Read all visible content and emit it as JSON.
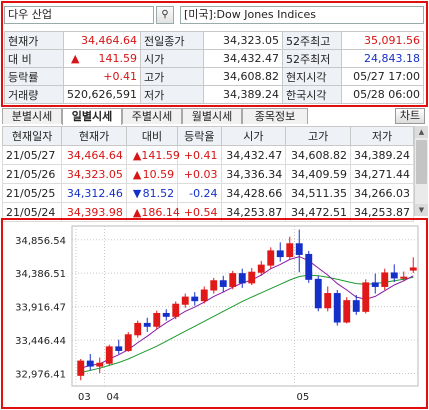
{
  "search": {
    "value": "다우 산업",
    "icon": "search-icon",
    "name": "[미국]:Dow Jones Indices"
  },
  "quote": {
    "current_label": "현재가",
    "current": "34,464.64",
    "prev_close_label": "전일종가",
    "prev_close": "34,323.05",
    "w52_high_label": "52주최고",
    "w52_high": "35,091.56",
    "change_label": "대 비",
    "change_sign": "▲",
    "change": "141.59",
    "open_label": "시가",
    "open": "34,432.47",
    "w52_low_label": "52주최저",
    "w52_low": "24,843.18",
    "rate_label": "등락률",
    "rate": "+0.41",
    "high_label": "고가",
    "high": "34,608.82",
    "local_time_label": "현지시각",
    "local_time": "05/27 17:00",
    "volume_label": "거래량",
    "volume": "520,626,591",
    "low_label": "저가",
    "low": "34,389.24",
    "kr_time_label": "한국시각",
    "kr_time": "05/28 06:00"
  },
  "tabs": [
    "분별시세",
    "일별시세",
    "주별시세",
    "월별시세",
    "종목정보"
  ],
  "chart_button": "차트",
  "daily": {
    "headers": [
      "현재일자",
      "현재가",
      "대비",
      "등락율",
      "시가",
      "고가",
      "저가"
    ],
    "rows": [
      {
        "date": "21/05/27",
        "close": "34,464.64",
        "sign": "▲",
        "diff": "141.59",
        "rate": "+0.41",
        "open": "34,432.47",
        "high": "34,608.82",
        "low": "34,389.24",
        "dir": "up"
      },
      {
        "date": "21/05/26",
        "close": "34,323.05",
        "sign": "▲",
        "diff": "10.59",
        "rate": "+0.03",
        "open": "34,336.34",
        "high": "34,409.59",
        "low": "34,271.44",
        "dir": "up"
      },
      {
        "date": "21/05/25",
        "close": "34,312.46",
        "sign": "▼",
        "diff": "81.52",
        "rate": "-0.24",
        "open": "34,428.66",
        "high": "34,511.35",
        "low": "34,266.03",
        "dir": "dn"
      },
      {
        "date": "21/05/24",
        "close": "34,393.98",
        "sign": "▲",
        "diff": "186.14",
        "rate": "+0.54",
        "open": "34,253.87",
        "high": "34,472.51",
        "low": "34,253.87",
        "dir": "up"
      }
    ]
  },
  "chart_data": {
    "type": "candlestick",
    "y_ticks": [
      "34,856.54",
      "34,386.51",
      "33,916.47",
      "33,446.44",
      "32,976.41"
    ],
    "y_tick_values": [
      34856.54,
      34386.51,
      33916.47,
      33446.44,
      32976.41
    ],
    "ylim": [
      32800,
      35050
    ],
    "x_ticks": [
      {
        "label": "03",
        "index": 0
      },
      {
        "label": "04",
        "index": 3
      },
      {
        "label": "05",
        "index": 23
      }
    ],
    "colors": {
      "up": "#e01818",
      "down": "#1530c8",
      "ma_short": "#8a1aa8",
      "ma_long": "#1a9a2a"
    },
    "candles": [
      [
        32950,
        33150,
        32880,
        33180
      ],
      [
        33150,
        33080,
        33020,
        33250
      ],
      [
        33080,
        33120,
        32980,
        33200
      ],
      [
        33120,
        33350,
        33090,
        33380
      ],
      [
        33350,
        33300,
        33250,
        33450
      ],
      [
        33300,
        33520,
        33280,
        33560
      ],
      [
        33520,
        33680,
        33480,
        33720
      ],
      [
        33680,
        33640,
        33560,
        33760
      ],
      [
        33640,
        33820,
        33600,
        33860
      ],
      [
        33820,
        33780,
        33720,
        33880
      ],
      [
        33780,
        33950,
        33740,
        33990
      ],
      [
        33950,
        34050,
        33900,
        34100
      ],
      [
        34050,
        34000,
        33930,
        34120
      ],
      [
        34000,
        34150,
        33960,
        34200
      ],
      [
        34150,
        34280,
        34100,
        34320
      ],
      [
        34280,
        34200,
        34120,
        34350
      ],
      [
        34200,
        34380,
        34160,
        34420
      ],
      [
        34380,
        34250,
        34180,
        34450
      ],
      [
        34250,
        34400,
        34220,
        34460
      ],
      [
        34400,
        34500,
        34350,
        34560
      ],
      [
        34500,
        34700,
        34450,
        34750
      ],
      [
        34700,
        34620,
        34550,
        34820
      ],
      [
        34620,
        34800,
        34580,
        34900
      ],
      [
        34800,
        34650,
        34400,
        35000
      ],
      [
        34650,
        34300,
        34250,
        34700
      ],
      [
        34300,
        33900,
        33850,
        34350
      ],
      [
        33900,
        34100,
        33850,
        34200
      ],
      [
        34100,
        33700,
        33650,
        34150
      ],
      [
        33700,
        34000,
        33680,
        34050
      ],
      [
        34000,
        33850,
        33800,
        34080
      ],
      [
        33850,
        34250,
        33820,
        34300
      ],
      [
        34250,
        34200,
        34100,
        34380
      ],
      [
        34200,
        34390,
        34150,
        34450
      ],
      [
        34390,
        34320,
        34260,
        34510
      ],
      [
        34320,
        34330,
        34270,
        34410
      ],
      [
        34430,
        34460,
        34390,
        34610
      ]
    ],
    "ma_short": [
      33050,
      33090,
      33110,
      33180,
      33240,
      33310,
      33410,
      33500,
      33600,
      33690,
      33770,
      33850,
      33910,
      33980,
      34060,
      34120,
      34190,
      34250,
      34290,
      34360,
      34450,
      34510,
      34580,
      34620,
      34560,
      34460,
      34360,
      34240,
      34150,
      34050,
      34020,
      34060,
      34140,
      34220,
      34280,
      34350
    ],
    "ma_long": [
      32990,
      33020,
      33050,
      33090,
      33130,
      33180,
      33240,
      33300,
      33360,
      33430,
      33500,
      33570,
      33640,
      33710,
      33780,
      33850,
      33920,
      33990,
      34050,
      34110,
      34170,
      34230,
      34290,
      34340,
      34360,
      34350,
      34330,
      34300,
      34270,
      34240,
      34230,
      34240,
      34260,
      34280,
      34300,
      34330
    ]
  }
}
